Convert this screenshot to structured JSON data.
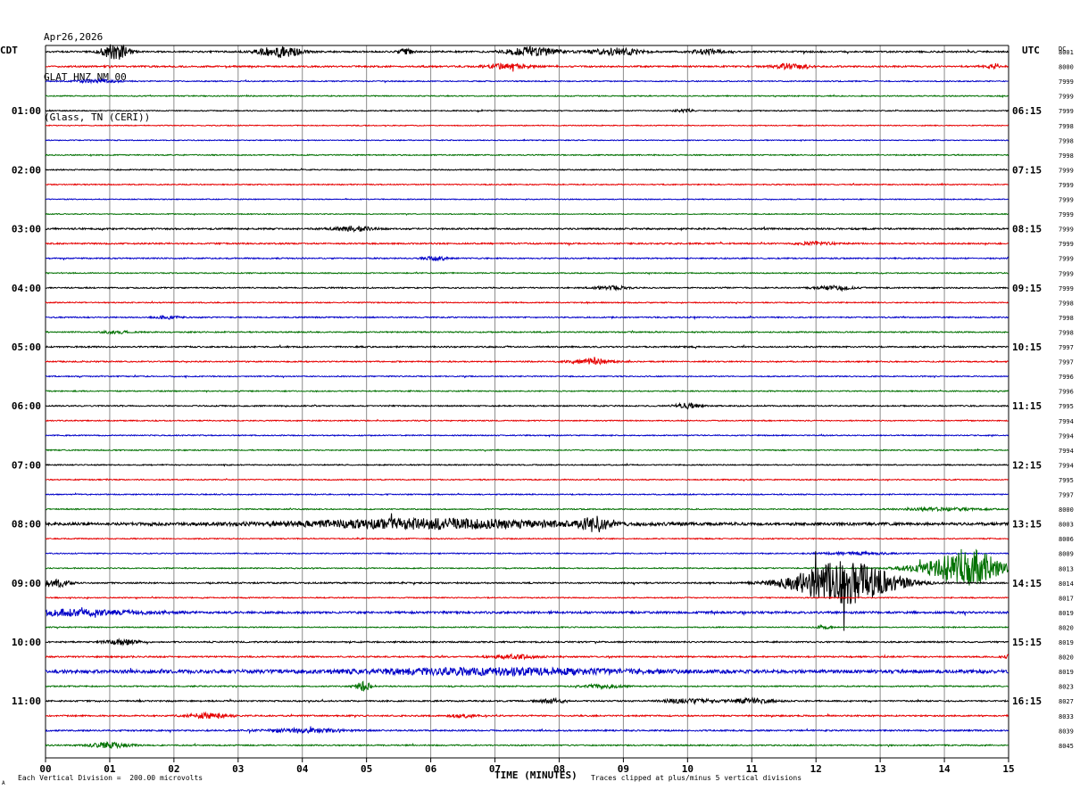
{
  "header": {
    "date": "Apr26,2026",
    "station": "GLAT HNZ NM 00",
    "location": "(Glass, TN (CERI))"
  },
  "axis_labels": {
    "left": "CDT",
    "right": "UTC",
    "dc": "DC",
    "x": "TIME (MINUTES)"
  },
  "footer": {
    "scale_note": "Each Vertical Division =  200.00 microvolts",
    "clip_note": "Traces clipped at plus/minus 5 vertical divisions",
    "corner_mark": "A"
  },
  "colors": {
    "trace_cycle": [
      "#000000",
      "#e60000",
      "#0000c8",
      "#007000"
    ],
    "gridline": "#8c8c8c",
    "frame": "#000000",
    "background": "#ffffff"
  },
  "chart_data": {
    "type": "line",
    "title": "GLAT HNZ NM 00",
    "xlabel": "TIME (MINUTES)",
    "x_ticks": [
      "00",
      "01",
      "02",
      "03",
      "04",
      "05",
      "06",
      "07",
      "08",
      "09",
      "10",
      "11",
      "12",
      "13",
      "14",
      "15"
    ],
    "xlim": [
      0,
      15
    ],
    "grid": true,
    "left_time_labels": [
      {
        "row": 4,
        "label": "01:00"
      },
      {
        "row": 8,
        "label": "02:00"
      },
      {
        "row": 12,
        "label": "03:00"
      },
      {
        "row": 16,
        "label": "04:00"
      },
      {
        "row": 20,
        "label": "05:00"
      },
      {
        "row": 24,
        "label": "06:00"
      },
      {
        "row": 28,
        "label": "07:00"
      },
      {
        "row": 32,
        "label": "08:00"
      },
      {
        "row": 36,
        "label": "09:00"
      },
      {
        "row": 40,
        "label": "10:00"
      },
      {
        "row": 44,
        "label": "11:00"
      }
    ],
    "right_time_labels": [
      {
        "row": 4,
        "label": "06:15"
      },
      {
        "row": 8,
        "label": "07:15"
      },
      {
        "row": 12,
        "label": "08:15"
      },
      {
        "row": 16,
        "label": "09:15"
      },
      {
        "row": 20,
        "label": "10:15"
      },
      {
        "row": 24,
        "label": "11:15"
      },
      {
        "row": 28,
        "label": "12:15"
      },
      {
        "row": 32,
        "label": "13:15"
      },
      {
        "row": 36,
        "label": "14:15"
      },
      {
        "row": 40,
        "label": "15:15"
      },
      {
        "row": 44,
        "label": "16:15"
      }
    ],
    "dc_offsets": [
      "8001",
      "8000",
      "7999",
      "7999",
      "7999",
      "7998",
      "7998",
      "7998",
      "7999",
      "7999",
      "7999",
      "7999",
      "7999",
      "7999",
      "7999",
      "7999",
      "7999",
      "7998",
      "7998",
      "7998",
      "7997",
      "7997",
      "7996",
      "7996",
      "7995",
      "7994",
      "7994",
      "7994",
      "7994",
      "7995",
      "7997",
      "8000",
      "8003",
      "8006",
      "8009",
      "8013",
      "8014",
      "8017",
      "8019",
      "8020",
      "8019",
      "8020",
      "8019",
      "8023",
      "8027",
      "8033",
      "8039",
      "8045"
    ],
    "traces": [
      {
        "row": 0,
        "noise": 0.9,
        "events": [
          {
            "t": 1.08,
            "amp": 10,
            "dur": 0.3
          },
          {
            "t": 3.65,
            "amp": 6,
            "dur": 0.5
          },
          {
            "t": 5.6,
            "amp": 3,
            "dur": 0.2
          },
          {
            "t": 7.6,
            "amp": 5,
            "dur": 0.6
          },
          {
            "t": 8.9,
            "amp": 4,
            "dur": 0.6
          },
          {
            "t": 10.3,
            "amp": 2.5,
            "dur": 0.4
          }
        ]
      },
      {
        "row": 1,
        "noise": 0.9,
        "events": [
          {
            "t": 7.2,
            "amp": 2.5,
            "dur": 0.6
          },
          {
            "t": 11.6,
            "amp": 3,
            "dur": 0.4
          },
          {
            "t": 14.7,
            "amp": 2,
            "dur": 0.2
          }
        ]
      },
      {
        "row": 2,
        "noise": 0.6,
        "events": [
          {
            "t": 0.8,
            "amp": 2,
            "dur": 0.5
          }
        ]
      },
      {
        "row": 3,
        "noise": 0.6,
        "events": []
      },
      {
        "row": 4,
        "noise": 0.6,
        "events": [
          {
            "t": 9.95,
            "amp": 2,
            "dur": 0.2
          }
        ]
      },
      {
        "row": 5,
        "noise": 0.5,
        "events": []
      },
      {
        "row": 6,
        "noise": 0.5,
        "events": []
      },
      {
        "row": 7,
        "noise": 0.6,
        "events": []
      },
      {
        "row": 8,
        "noise": 0.6,
        "events": []
      },
      {
        "row": 9,
        "noise": 0.6,
        "events": []
      },
      {
        "row": 10,
        "noise": 0.5,
        "events": []
      },
      {
        "row": 11,
        "noise": 0.5,
        "events": []
      },
      {
        "row": 12,
        "noise": 0.9,
        "events": [
          {
            "t": 4.8,
            "amp": 2.5,
            "dur": 0.5
          }
        ]
      },
      {
        "row": 13,
        "noise": 0.8,
        "events": [
          {
            "t": 12.0,
            "amp": 2,
            "dur": 0.4
          }
        ]
      },
      {
        "row": 14,
        "noise": 0.7,
        "events": [
          {
            "t": 6.1,
            "amp": 2,
            "dur": 0.3
          }
        ]
      },
      {
        "row": 15,
        "noise": 0.6,
        "events": []
      },
      {
        "row": 16,
        "noise": 0.7,
        "events": [
          {
            "t": 8.8,
            "amp": 2,
            "dur": 0.4
          },
          {
            "t": 12.3,
            "amp": 2,
            "dur": 0.5
          }
        ]
      },
      {
        "row": 17,
        "noise": 0.6,
        "events": []
      },
      {
        "row": 18,
        "noise": 0.7,
        "events": [
          {
            "t": 1.9,
            "amp": 1.5,
            "dur": 0.3
          }
        ]
      },
      {
        "row": 19,
        "noise": 0.7,
        "events": [
          {
            "t": 1.1,
            "amp": 1.5,
            "dur": 0.3
          }
        ]
      },
      {
        "row": 20,
        "noise": 0.8,
        "events": []
      },
      {
        "row": 21,
        "noise": 0.7,
        "events": [
          {
            "t": 8.5,
            "amp": 3,
            "dur": 0.5
          }
        ]
      },
      {
        "row": 22,
        "noise": 0.6,
        "events": []
      },
      {
        "row": 23,
        "noise": 0.6,
        "events": []
      },
      {
        "row": 24,
        "noise": 0.7,
        "events": [
          {
            "t": 10.0,
            "amp": 3,
            "dur": 0.3
          }
        ]
      },
      {
        "row": 25,
        "noise": 0.6,
        "events": []
      },
      {
        "row": 26,
        "noise": 0.6,
        "events": []
      },
      {
        "row": 27,
        "noise": 0.6,
        "events": []
      },
      {
        "row": 28,
        "noise": 0.6,
        "events": []
      },
      {
        "row": 29,
        "noise": 0.6,
        "events": []
      },
      {
        "row": 30,
        "noise": 0.6,
        "events": []
      },
      {
        "row": 31,
        "noise": 0.6,
        "events": [
          {
            "t": 14.0,
            "amp": 1.5,
            "dur": 1.0
          }
        ]
      },
      {
        "row": 32,
        "noise": 1.5,
        "events": [
          {
            "t": 6.0,
            "amp": 5,
            "dur": 3.5
          },
          {
            "t": 8.55,
            "amp": 8,
            "dur": 0.3
          }
        ]
      },
      {
        "row": 33,
        "noise": 0.6,
        "events": []
      },
      {
        "row": 34,
        "noise": 0.6,
        "events": [
          {
            "t": 12.6,
            "amp": 1.5,
            "dur": 0.8
          }
        ]
      },
      {
        "row": 35,
        "noise": 0.6,
        "events": [
          {
            "t": 13.5,
            "amp": 2,
            "dur": 0.6
          },
          {
            "t": 14.35,
            "amp": 22,
            "dur": 0.8
          }
        ]
      },
      {
        "row": 36,
        "noise": 0.8,
        "events": [
          {
            "t": 0.15,
            "amp": 5,
            "dur": 0.3
          },
          {
            "t": 12.45,
            "amp": 24,
            "dur": 1.2
          }
        ]
      },
      {
        "row": 37,
        "noise": 0.6,
        "events": []
      },
      {
        "row": 38,
        "noise": 1.2,
        "events": [
          {
            "t": 0.3,
            "amp": 3,
            "dur": 2.0
          }
        ]
      },
      {
        "row": 39,
        "noise": 0.6,
        "events": [
          {
            "t": 12.1,
            "amp": 2,
            "dur": 0.2
          }
        ]
      },
      {
        "row": 40,
        "noise": 0.8,
        "events": [
          {
            "t": 1.2,
            "amp": 2.5,
            "dur": 0.4
          }
        ]
      },
      {
        "row": 41,
        "noise": 0.8,
        "events": [
          {
            "t": 7.3,
            "amp": 2,
            "dur": 0.6
          },
          {
            "t": 15.0,
            "amp": 2,
            "dur": 0.15
          }
        ]
      },
      {
        "row": 42,
        "noise": 1.8,
        "events": [
          {
            "t": 7.0,
            "amp": 3,
            "dur": 3.5
          }
        ]
      },
      {
        "row": 43,
        "noise": 0.7,
        "events": [
          {
            "t": 4.95,
            "amp": 5,
            "dur": 0.2
          },
          {
            "t": 8.7,
            "amp": 2,
            "dur": 0.5
          }
        ]
      },
      {
        "row": 44,
        "noise": 0.8,
        "events": [
          {
            "t": 7.9,
            "amp": 3,
            "dur": 0.3
          },
          {
            "t": 10.0,
            "amp": 2.5,
            "dur": 0.6
          },
          {
            "t": 11.0,
            "amp": 2.5,
            "dur": 0.6
          }
        ]
      },
      {
        "row": 45,
        "noise": 0.8,
        "events": [
          {
            "t": 2.5,
            "amp": 2.5,
            "dur": 0.5
          },
          {
            "t": 6.5,
            "amp": 2,
            "dur": 0.3
          }
        ]
      },
      {
        "row": 46,
        "noise": 0.8,
        "events": [
          {
            "t": 4.0,
            "amp": 2,
            "dur": 1.0
          }
        ]
      },
      {
        "row": 47,
        "noise": 0.7,
        "events": [
          {
            "t": 1.0,
            "amp": 3,
            "dur": 0.5
          }
        ]
      }
    ]
  }
}
